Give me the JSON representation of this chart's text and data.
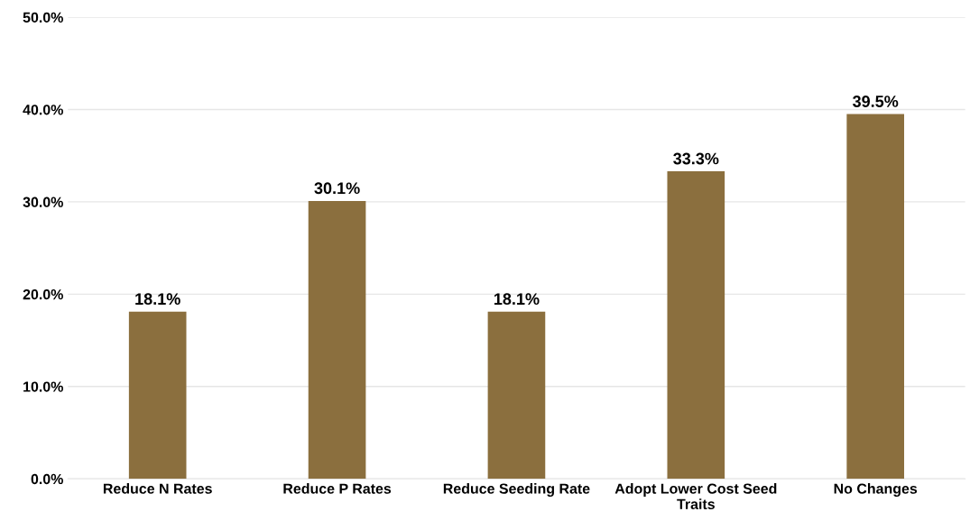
{
  "chart_data": {
    "type": "bar",
    "categories": [
      "Reduce N Rates",
      "Reduce P Rates",
      "Reduce Seeding Rate",
      "Adopt Lower Cost Seed\nTraits",
      "No Changes"
    ],
    "values": [
      18.1,
      30.1,
      18.1,
      33.3,
      39.5
    ],
    "color": "#8b6f3e",
    "value_labels": [
      "18.1%",
      "30.1%",
      "18.1%",
      "33.3%",
      "39.5%"
    ],
    "ylim": [
      0,
      50
    ],
    "yticks": [
      {
        "value": 0,
        "label": "0.0%"
      },
      {
        "value": 10,
        "label": "10.0%"
      },
      {
        "value": 20,
        "label": "20.0%"
      },
      {
        "value": 30,
        "label": "30.0%"
      },
      {
        "value": 40,
        "label": "40.0%"
      },
      {
        "value": 50,
        "label": "50.0%"
      }
    ],
    "grid": "y",
    "legend": false
  }
}
